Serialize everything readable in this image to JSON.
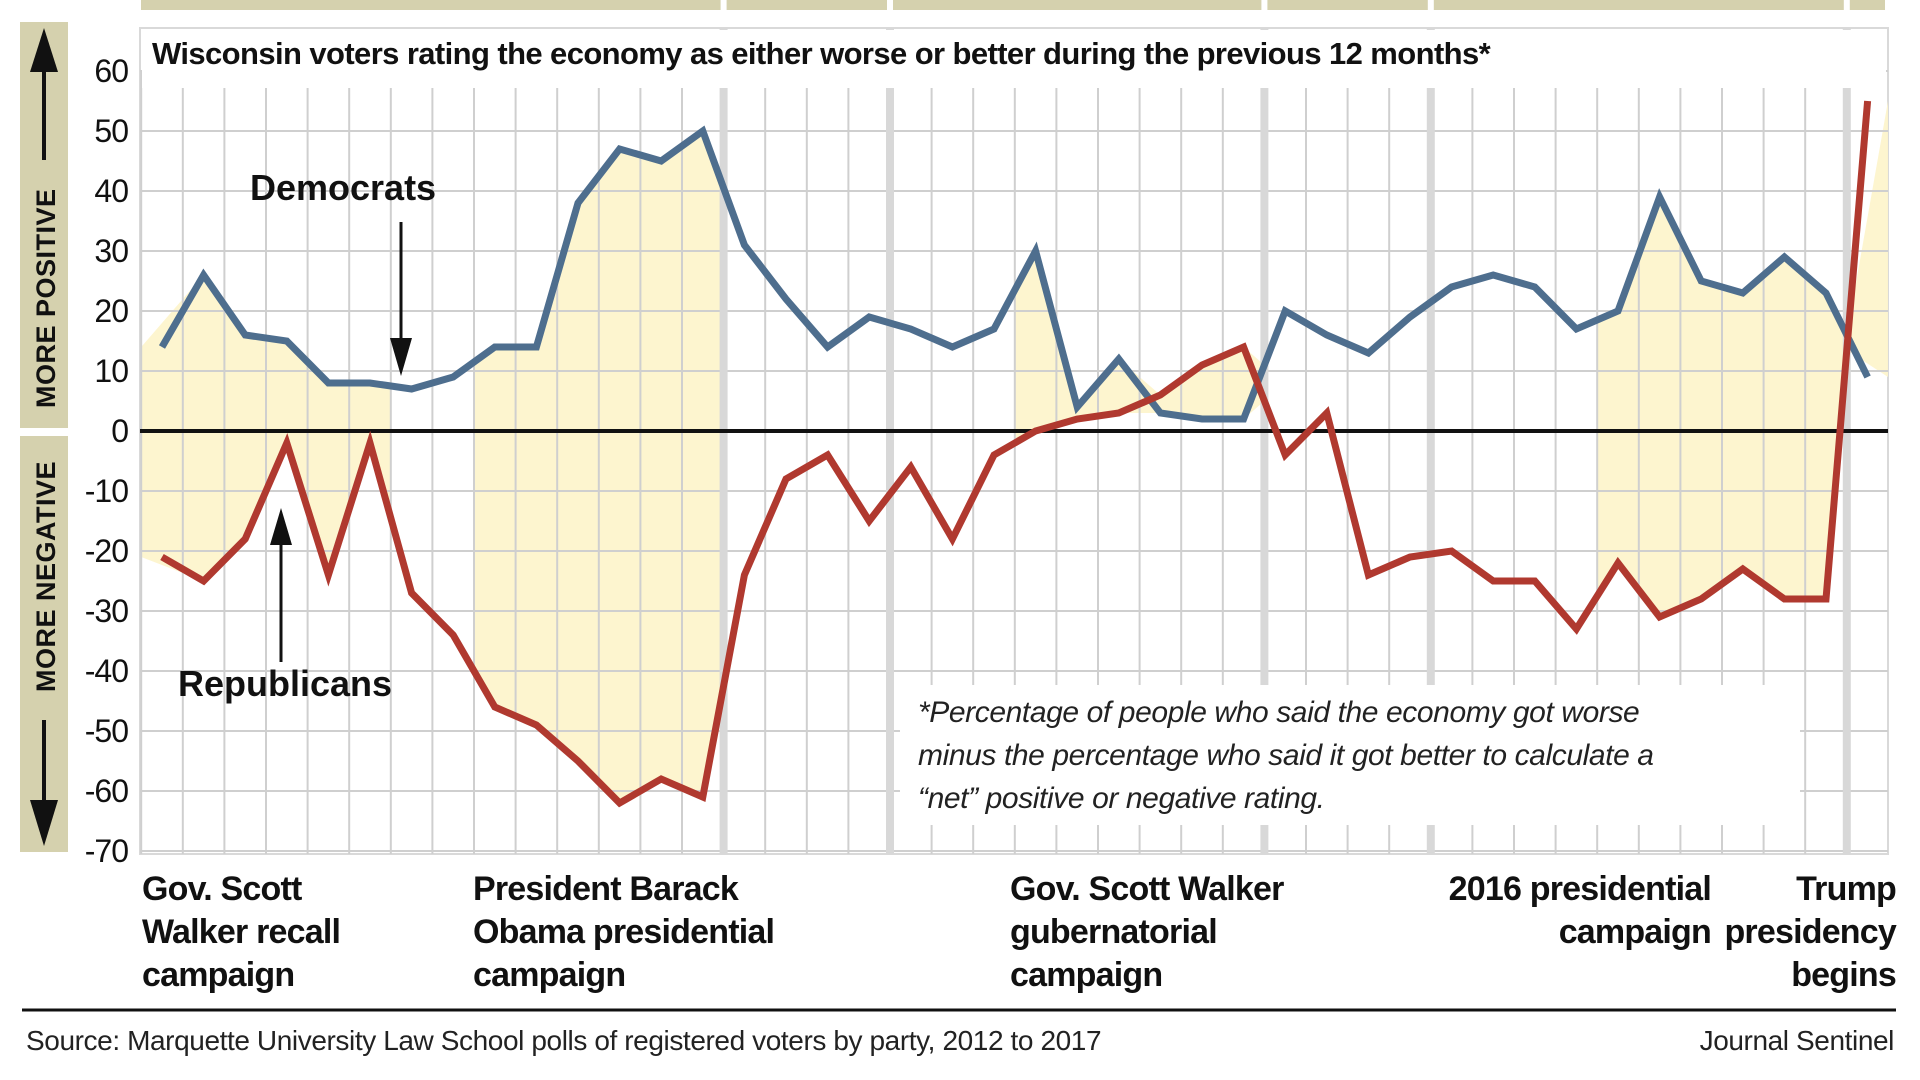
{
  "chart_data": {
    "type": "line",
    "title": "Wisconsin voters rating the economy as either worse or better during the previous 12 months*",
    "ylabel_positive": "MORE POSITIVE",
    "ylabel_negative": "MORE NEGATIVE",
    "ylim": [
      -70,
      60
    ],
    "yticks": [
      60,
      50,
      40,
      30,
      20,
      10,
      0,
      -10,
      -20,
      -30,
      -40,
      -50,
      -60,
      -70
    ],
    "ytick_labels": [
      "60",
      "50",
      "40",
      "30",
      "20",
      "10",
      "0",
      "-10",
      "-20",
      "-30",
      "-40",
      "-50",
      "-60",
      "-70"
    ],
    "grid": true,
    "x_count": 42,
    "series": [
      {
        "name": "Democrats",
        "color": "#4e6e8e",
        "values": [
          14,
          26,
          16,
          15,
          8,
          8,
          7,
          9,
          14,
          14,
          38,
          47,
          45,
          50,
          31,
          22,
          14,
          19,
          17,
          14,
          17,
          30,
          4,
          12,
          3,
          2,
          2,
          20,
          16,
          13,
          19,
          24,
          26,
          24,
          17,
          20,
          39,
          25,
          23,
          29,
          23,
          9
        ]
      },
      {
        "name": "Republicans",
        "color": "#b0392f",
        "values": [
          -21,
          -25,
          -18,
          -2,
          -24,
          -2,
          -27,
          -34,
          -46,
          -49,
          -55,
          -62,
          -58,
          -61,
          -24,
          -8,
          -4,
          -15,
          -6,
          -18,
          -4,
          0,
          2,
          3,
          6,
          11,
          14,
          -4,
          3,
          -24,
          -21,
          -20,
          -25,
          -25,
          -33,
          -22,
          -31,
          -28,
          -23,
          -28,
          -28,
          55
        ]
      }
    ],
    "series_labels": [
      {
        "text": "Democrats",
        "points_to_index": 5
      },
      {
        "text": "Republicans",
        "points_to_index": 3
      }
    ],
    "shaded_periods": [
      {
        "label": "Gov. Scott Walker recall campaign",
        "from_index": -0.5,
        "to_index": 5.5,
        "lines": [
          "Gov. Scott",
          "Walker recall",
          "campaign"
        ]
      },
      {
        "label": "President Barack Obama presidential campaign",
        "from_index": 7.5,
        "to_index": 13.5,
        "lines": [
          "President Barack",
          "Obama presidential",
          "campaign"
        ]
      },
      {
        "label": "Gov. Scott Walker gubernatorial campaign",
        "from_index": 20.5,
        "to_index": 26.5,
        "lines": [
          "Gov. Scott Walker",
          "gubernatorial",
          "campaign"
        ]
      },
      {
        "label": "2016 presidential campaign",
        "from_index": 34.5,
        "to_index": 40.5,
        "lines": [
          "2016 presidential",
          "campaign"
        ]
      },
      {
        "label": "Trump presidency begins",
        "from_index": 40.5,
        "to_index": 41.5,
        "lines": [
          "Trump",
          "presidency",
          "begins"
        ]
      }
    ],
    "year_dividers_after_index": [
      13.5,
      17.5,
      26.5,
      30.5,
      40.5
    ],
    "shade_color": "#fdf4cc",
    "annotation": [
      "*Percentage of people who said the economy got worse",
      "minus the percentage who said it got better to calculate a",
      "“net” positive or negative rating."
    ]
  },
  "footer": {
    "source": "Source: Marquette University Law School polls of registered voters by party, 2012 to 2017",
    "credit": "Journal Sentinel"
  },
  "colors": {
    "sidebar": "#d5d1ae",
    "zero_line": "#111111",
    "grid": "#cfcfcf",
    "year_divider": "#d8d8d8"
  }
}
